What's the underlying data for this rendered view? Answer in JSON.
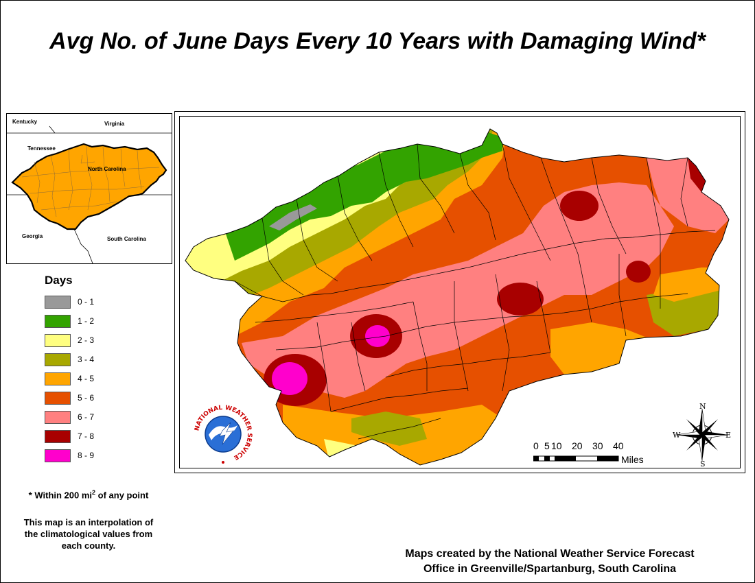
{
  "title": "Avg No. of June Days Every 10 Years with Damaging Wind*",
  "inset_map": {
    "labels": {
      "kentucky": "Kentucky",
      "virginia": "Virginia",
      "tennessee": "Tennessee",
      "north_carolina": "North Carolina",
      "georgia": "Georgia",
      "south_carolina": "South Carolina"
    },
    "fill_color": "#FFA500"
  },
  "legend": {
    "title": "Days",
    "items": [
      {
        "label": "0 - 1",
        "color": "#999999"
      },
      {
        "label": "1 - 2",
        "color": "#33A300"
      },
      {
        "label": "2 - 3",
        "color": "#FFFF80"
      },
      {
        "label": "3 - 4",
        "color": "#A8A800"
      },
      {
        "label": "4 - 5",
        "color": "#FFA500"
      },
      {
        "label": "5 - 6",
        "color": "#E65000"
      },
      {
        "label": "6 - 7",
        "color": "#FF8080"
      },
      {
        "label": "7 - 8",
        "color": "#A80000"
      },
      {
        "label": "8 - 9",
        "color": "#FF00CC"
      }
    ]
  },
  "note": {
    "prefix": "* Within 200 mi",
    "superscript": "2",
    "suffix": " of any point"
  },
  "interpolation_note": {
    "line1": "This map is an interpolation of",
    "line2": "the climatological values from",
    "line3": "each county."
  },
  "credit": {
    "line1": "Maps created by the National Weather Service Forecast",
    "line2": "Office in Greenville/Spartanburg, South Carolina"
  },
  "scale_bar": {
    "ticks": [
      "0",
      "5",
      "10",
      "20",
      "30",
      "40"
    ],
    "unit": "Miles"
  },
  "compass": {
    "n": "N",
    "s": "S",
    "e": "E",
    "w": "W"
  },
  "logo": {
    "text": "NATIONAL WEATHER SERVICE"
  }
}
